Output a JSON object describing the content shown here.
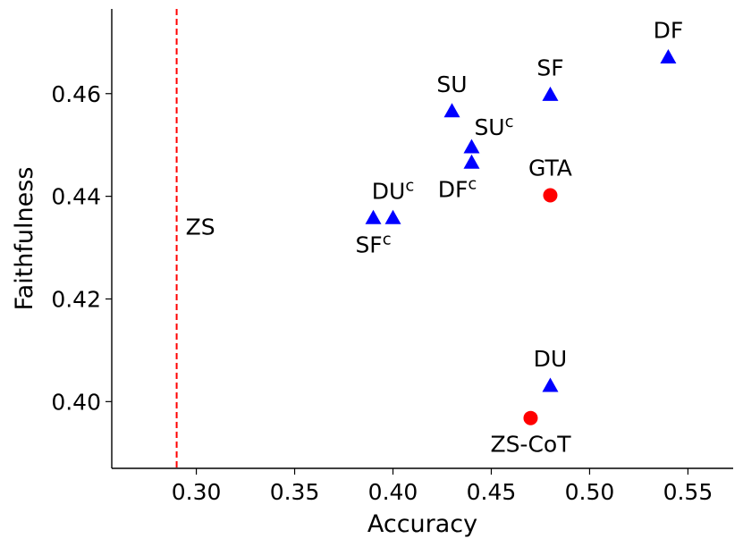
{
  "chart_data": {
    "type": "scatter",
    "title": "",
    "xlabel": "Accuracy",
    "ylabel": "Faithfulness",
    "xlim": [
      0.257,
      0.573
    ],
    "ylim": [
      0.387,
      0.4765
    ],
    "xticks": [
      0.3,
      0.35,
      0.4,
      0.45,
      0.5,
      0.55
    ],
    "xtick_labels": [
      "0.30",
      "0.35",
      "0.40",
      "0.45",
      "0.50",
      "0.55"
    ],
    "yticks": [
      0.4,
      0.42,
      0.44,
      0.46
    ],
    "ytick_labels": [
      "0.40",
      "0.42",
      "0.44",
      "0.46"
    ],
    "grid": false,
    "reference_line": {
      "label": "ZS",
      "x": 0.29,
      "color": "#ff0000",
      "style": "dashed"
    },
    "series": [
      {
        "name": "triangle methods",
        "marker": "triangle",
        "color": "#0000ff",
        "points": [
          {
            "label": "DF",
            "sup": "",
            "x": 0.54,
            "y": 0.467,
            "anchor": "above"
          },
          {
            "label": "SF",
            "sup": "",
            "x": 0.48,
            "y": 0.4597,
            "anchor": "above"
          },
          {
            "label": "SU",
            "sup": "",
            "x": 0.43,
            "y": 0.4565,
            "anchor": "above"
          },
          {
            "label": "SU",
            "sup": "c",
            "x": 0.44,
            "y": 0.4495,
            "anchor": "above-right"
          },
          {
            "label": "DF",
            "sup": "c",
            "x": 0.44,
            "y": 0.4465,
            "anchor": "below-left"
          },
          {
            "label": "DU",
            "sup": "c",
            "x": 0.4,
            "y": 0.4357,
            "anchor": "above"
          },
          {
            "label": "SF",
            "sup": "c",
            "x": 0.39,
            "y": 0.4357,
            "anchor": "below"
          },
          {
            "label": "DU",
            "sup": "",
            "x": 0.48,
            "y": 0.403,
            "anchor": "above"
          }
        ]
      },
      {
        "name": "circle methods",
        "marker": "circle",
        "color": "#ff0000",
        "points": [
          {
            "label": "GTA",
            "sup": "",
            "x": 0.48,
            "y": 0.4402,
            "anchor": "above"
          },
          {
            "label": "ZS-CoT",
            "sup": "",
            "x": 0.47,
            "y": 0.3968,
            "anchor": "below"
          }
        ]
      }
    ]
  }
}
